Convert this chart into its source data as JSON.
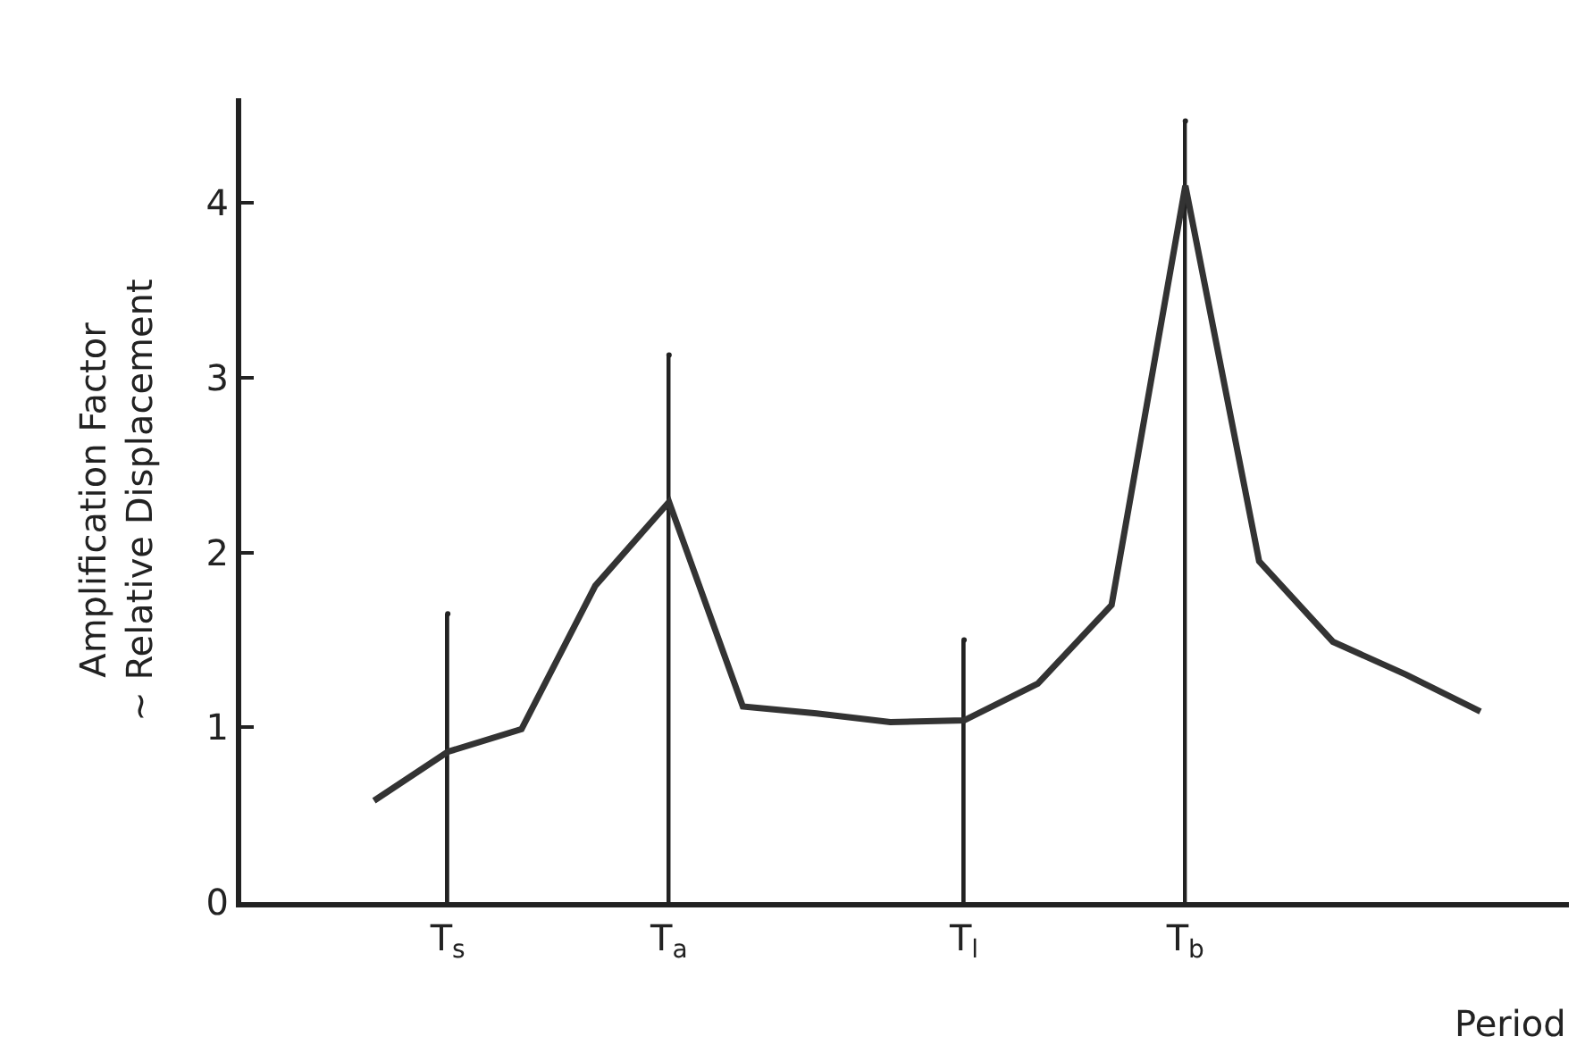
{
  "chart_data": {
    "type": "line",
    "xlabel": "Period",
    "ylabel": "Amplification Factor\n~ Relative Displacement",
    "categories": [
      null,
      "T$_{s}$",
      null,
      null,
      "T$_{a}$",
      null,
      null,
      null,
      "T$_{l}$",
      null,
      null,
      "T$_{b}$",
      null,
      null,
      null,
      null
    ],
    "ylim": [
      0,
      4.6
    ],
    "yticks": [
      0,
      1,
      2,
      3,
      4
    ],
    "marker": "none",
    "line_style": "solid",
    "series": [
      {
        "color": "#333333",
        "values": [
          0.58,
          0.86,
          0.99,
          1.81,
          2.29,
          1.12,
          1.08,
          1.03,
          1.04,
          1.25,
          1.7,
          4.1,
          1.95,
          1.49,
          1.3,
          1.09
        ]
      },
      {
        "type": "lollipop",
        "color": "#222222",
        "values": [
          null,
          1.65,
          null,
          null,
          3.13,
          null,
          null,
          null,
          1.5,
          null,
          null,
          4.47,
          null,
          null,
          null,
          null
        ]
      }
    ]
  }
}
